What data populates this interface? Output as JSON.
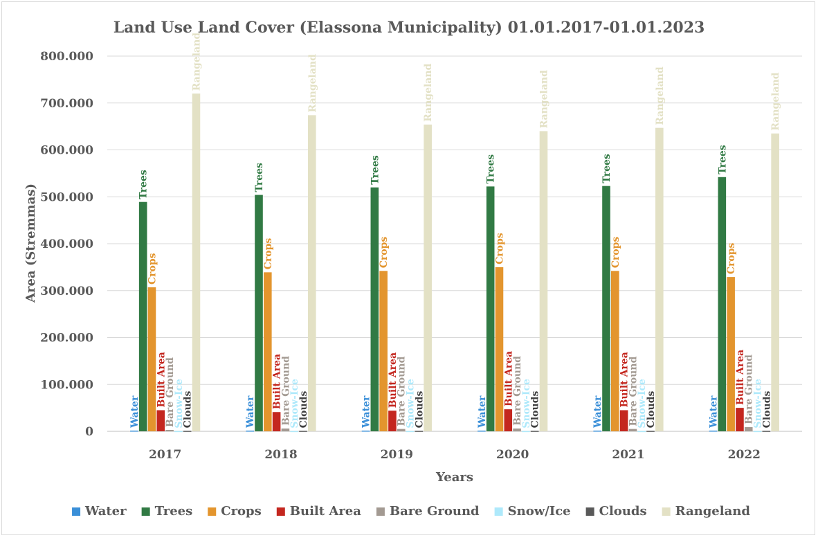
{
  "chart_data": {
    "type": "bar",
    "title": "Land Use Land Cover (Elassona Municipality) 01.01.2017-01.01.2023",
    "xlabel": "Years",
    "ylabel": "Area (Stremmas)",
    "categories": [
      "2017",
      "2018",
      "2019",
      "2020",
      "2021",
      "2022"
    ],
    "ylim": [
      0,
      800000
    ],
    "yticks": [
      {
        "value": 0,
        "label": "0"
      },
      {
        "value": 100000,
        "label": "100.000"
      },
      {
        "value": 200000,
        "label": "200.000"
      },
      {
        "value": 300000,
        "label": "300.000"
      },
      {
        "value": 400000,
        "label": "400.000"
      },
      {
        "value": 500000,
        "label": "500.000"
      },
      {
        "value": 600000,
        "label": "600.000"
      },
      {
        "value": 700000,
        "label": "700.000"
      },
      {
        "value": 800000,
        "label": "800.000"
      }
    ],
    "grid": true,
    "legend_position": "bottom",
    "series": [
      {
        "name": "Water",
        "label": "Water",
        "color": "#3a8fd8",
        "label_color": "#3a8fd8",
        "values": [
          1500,
          1500,
          1500,
          1500,
          1500,
          1500
        ]
      },
      {
        "name": "Trees",
        "label": "Trees",
        "color": "#317a44",
        "label_color": "#317a44",
        "values": [
          489000,
          504000,
          520000,
          522000,
          523000,
          542000
        ]
      },
      {
        "name": "Crops",
        "label": "Crops",
        "color": "#e3952e",
        "label_color": "#e3952e",
        "values": [
          307000,
          339000,
          342000,
          350000,
          342000,
          329000
        ]
      },
      {
        "name": "Built Area",
        "label": "Built Area",
        "color": "#c4271f",
        "label_color": "#c4271f",
        "values": [
          45000,
          41000,
          44000,
          47000,
          45000,
          50000
        ]
      },
      {
        "name": "Bare Ground",
        "label": "Bare Ground",
        "color": "#a39a92",
        "label_color": "#a39a92",
        "values": [
          3000,
          6000,
          5000,
          6000,
          5000,
          9000
        ]
      },
      {
        "name": "Snow/Ice",
        "label": "Snow-Ice",
        "color": "#aee9fb",
        "label_color": "#aee9fb",
        "values": [
          500,
          500,
          500,
          500,
          500,
          500
        ]
      },
      {
        "name": "Clouds",
        "label": "Clouds",
        "color": "#595959",
        "label_color": "#404040",
        "values": [
          1000,
          1000,
          1000,
          1000,
          1000,
          1000
        ]
      },
      {
        "name": "Rangeland",
        "label": "Rangeland",
        "color": "#e3e1c5",
        "label_color": "#e3e1c5",
        "values": [
          720000,
          674000,
          654000,
          640000,
          647000,
          635000
        ]
      }
    ]
  }
}
